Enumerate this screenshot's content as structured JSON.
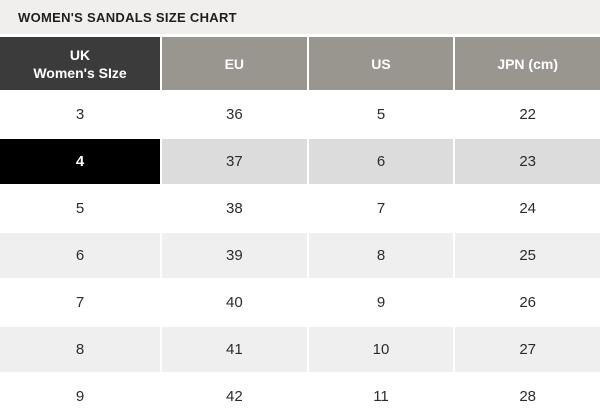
{
  "page": {
    "title": "WOMEN'S SANDALS SIZE CHART"
  },
  "table": {
    "header": {
      "uk_line1": "UK",
      "uk_line2": "Women's SIze",
      "eu": "EU",
      "us": "US",
      "jpn": "JPN (cm)"
    },
    "rows": [
      {
        "uk": "3",
        "eu": "36",
        "us": "5",
        "jpn": "22",
        "selected": false
      },
      {
        "uk": "4",
        "eu": "37",
        "us": "6",
        "jpn": "23",
        "selected": true
      },
      {
        "uk": "5",
        "eu": "38",
        "us": "7",
        "jpn": "24",
        "selected": false
      },
      {
        "uk": "6",
        "eu": "39",
        "us": "8",
        "jpn": "25",
        "selected": false
      },
      {
        "uk": "7",
        "eu": "40",
        "us": "9",
        "jpn": "26",
        "selected": false
      },
      {
        "uk": "8",
        "eu": "41",
        "us": "10",
        "jpn": "27",
        "selected": false
      },
      {
        "uk": "9",
        "eu": "42",
        "us": "11",
        "jpn": "28",
        "selected": false
      }
    ],
    "selected_uk_size": "4"
  },
  "colors": {
    "title_bar_bg": "#f1efed",
    "title_text": "#1f1f1f",
    "header_dark_bg": "#3b3b3b",
    "header_gray_bg": "#999690",
    "header_text": "#ffffff",
    "selected_cell_bg": "#000000",
    "selected_row_bg": "#dcdcdc",
    "alt_row_bg": "#efefef",
    "row_bg": "#ffffff",
    "cell_text": "#2b2b2b",
    "gridline": "#ffffff"
  }
}
